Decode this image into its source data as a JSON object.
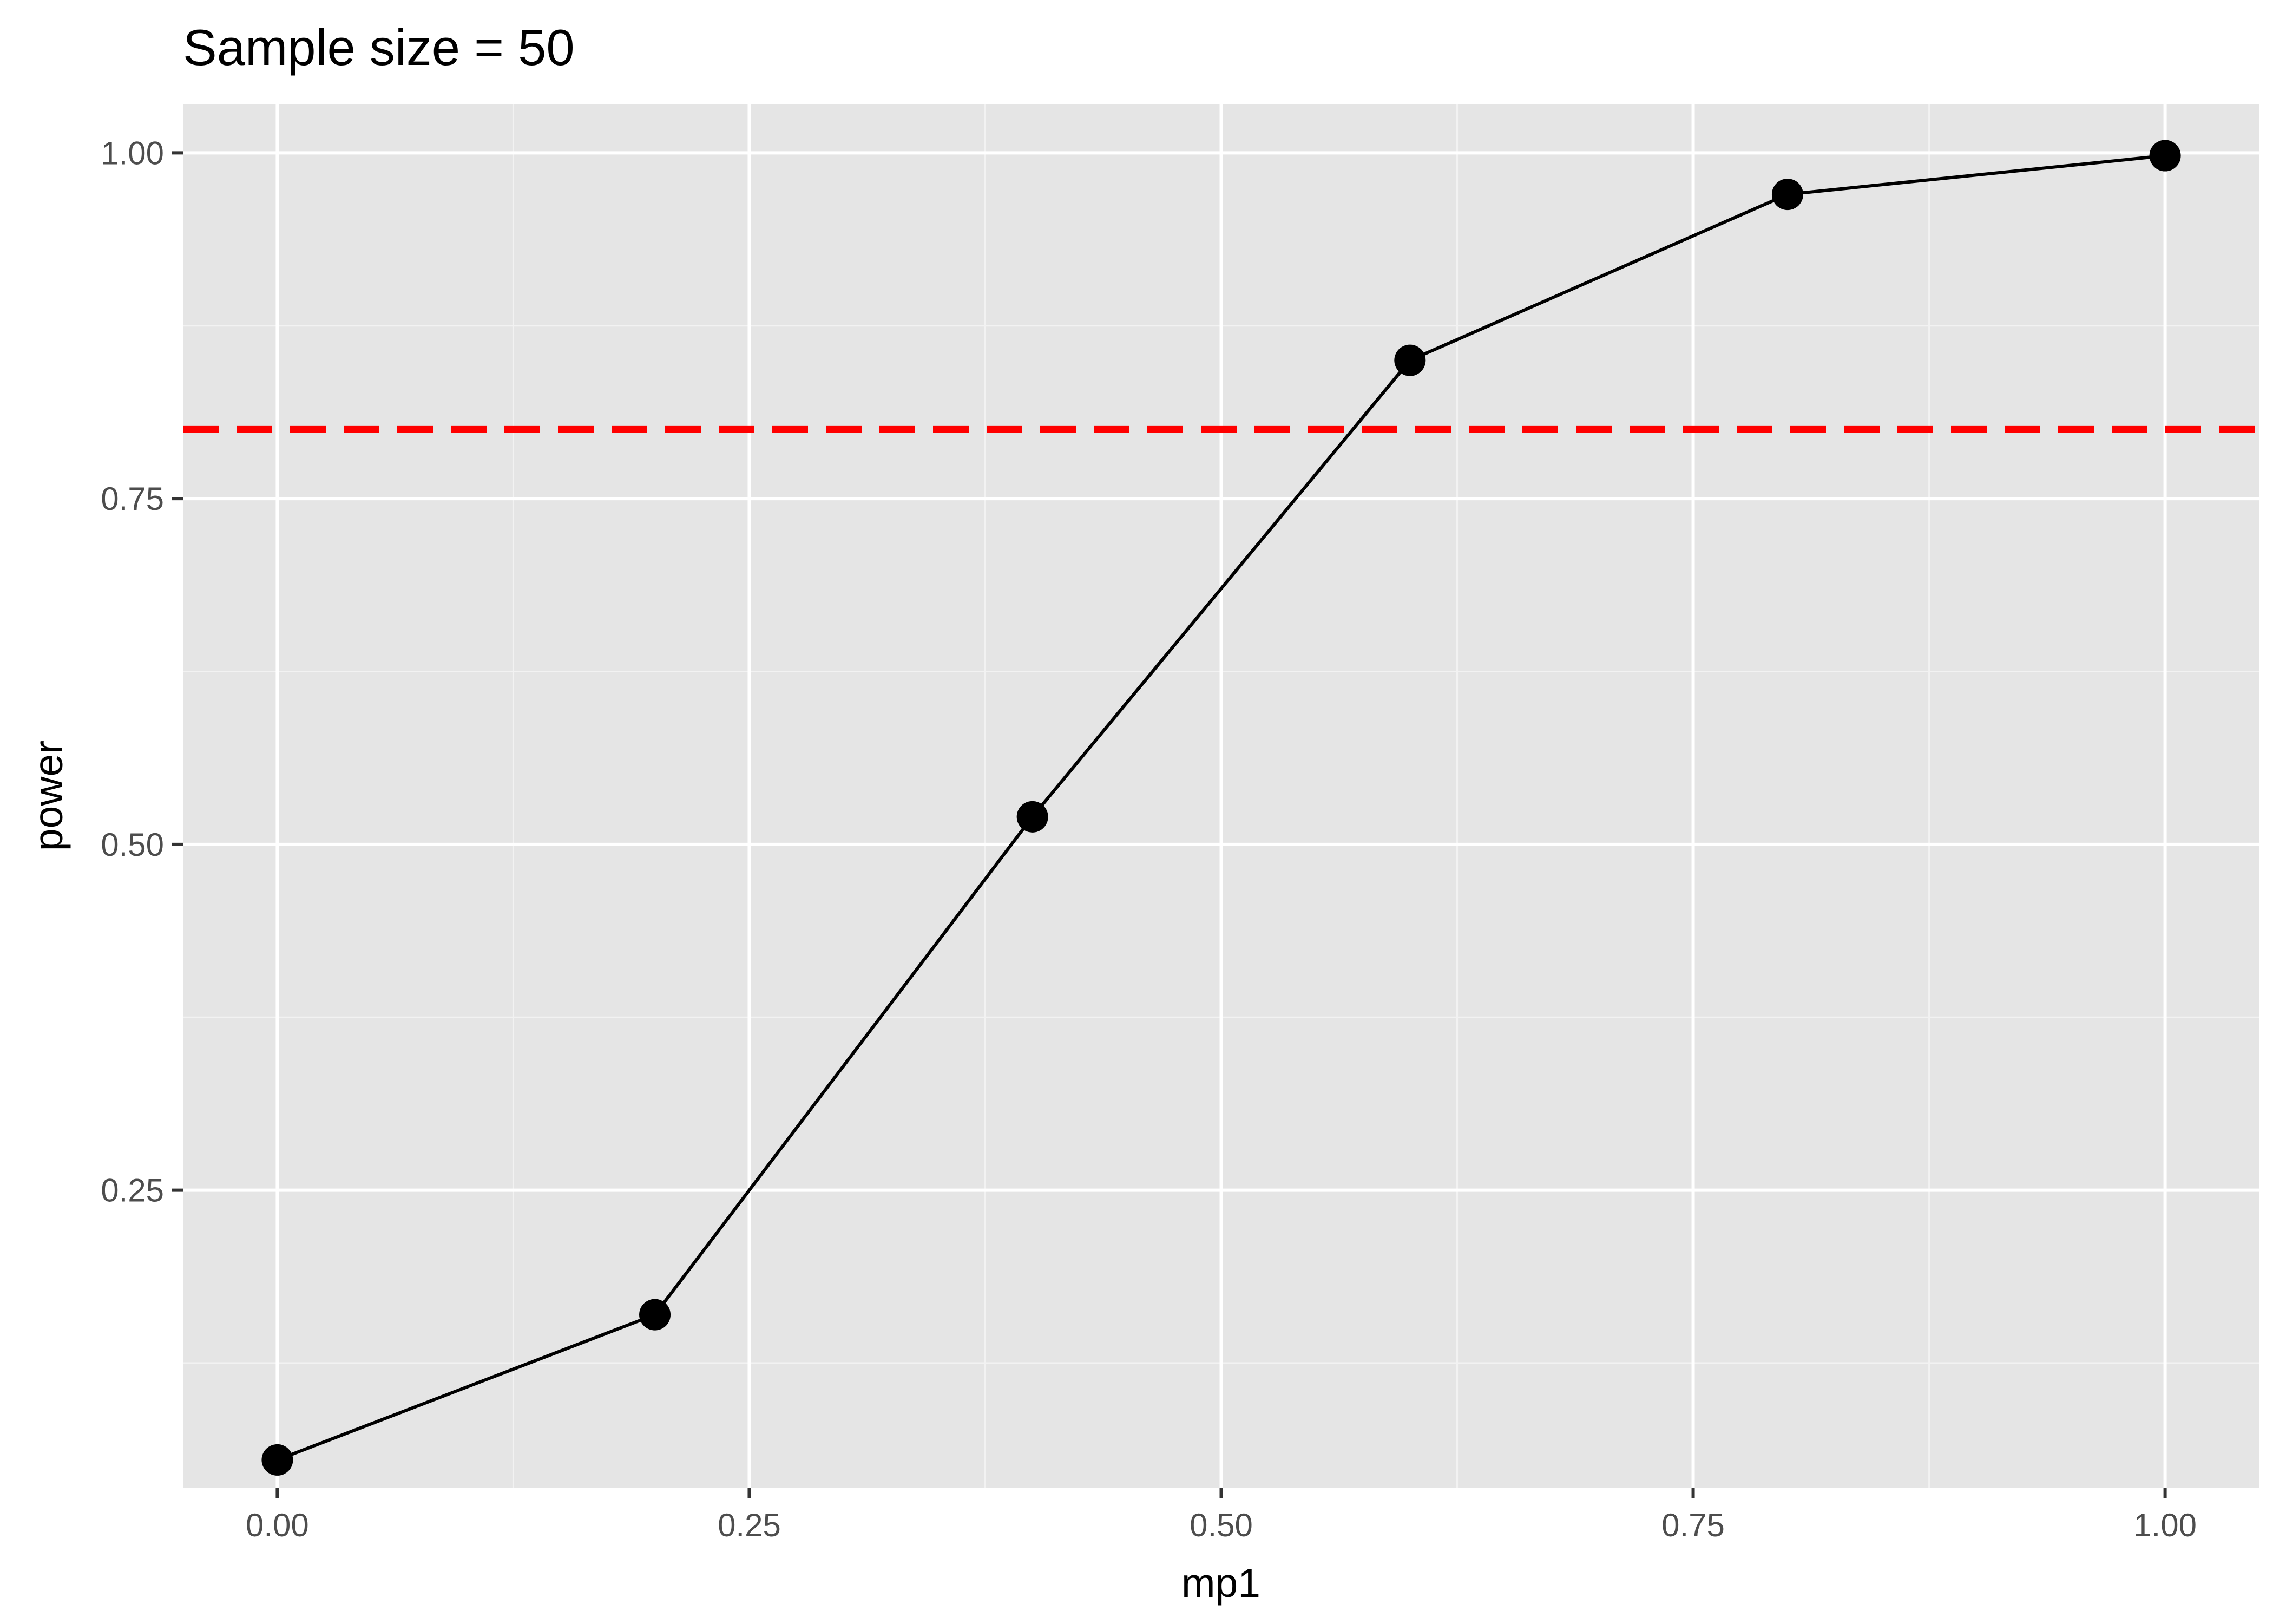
{
  "chart_data": {
    "type": "line",
    "title": "Sample size =  50",
    "xlabel": "mp1",
    "ylabel": "power",
    "xlim": [
      -0.05,
      1.05
    ],
    "ylim": [
      0.035,
      1.035
    ],
    "x_ticks": [
      {
        "value": 0.0,
        "label": "0.00"
      },
      {
        "value": 0.25,
        "label": "0.25"
      },
      {
        "value": 0.5,
        "label": "0.50"
      },
      {
        "value": 0.75,
        "label": "0.75"
      },
      {
        "value": 1.0,
        "label": "1.00"
      }
    ],
    "y_ticks": [
      {
        "value": 0.25,
        "label": "0.25"
      },
      {
        "value": 0.5,
        "label": "0.50"
      },
      {
        "value": 0.75,
        "label": "0.75"
      },
      {
        "value": 1.0,
        "label": "1.00"
      }
    ],
    "x_minor": [
      0.125,
      0.375,
      0.625,
      0.875
    ],
    "y_minor": [
      0.125,
      0.375,
      0.625,
      0.875
    ],
    "grid": true,
    "series": [
      {
        "x": [
          0.0,
          0.2,
          0.4,
          0.6,
          0.8,
          1.0
        ],
        "values": [
          0.055,
          0.16,
          0.52,
          0.85,
          0.97,
          0.998
        ],
        "color": "#000000",
        "markers": true
      }
    ],
    "reference_line": {
      "orientation": "horizontal",
      "y": 0.8,
      "color": "#ff0000",
      "style": "dashed"
    }
  },
  "colors": {
    "panel_background": "#e5e5e5",
    "grid_major": "#ffffff",
    "grid_minor": "#f2f2f2",
    "tick_text": "#4d4d4d",
    "tick_mark": "#333333"
  }
}
